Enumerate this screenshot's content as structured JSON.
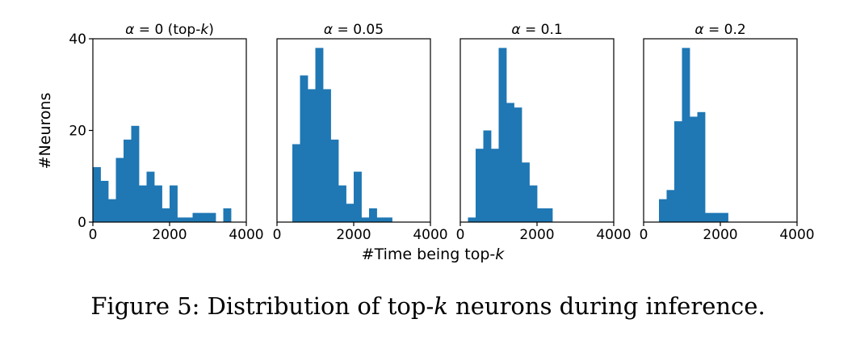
{
  "chart_data": {
    "type": "bar",
    "bar_color": "#1f77b4",
    "xlabel_prefix": "#Time being top-",
    "xlabel_k": "k",
    "ylabel": "#Neurons",
    "xlim": [
      0,
      4000
    ],
    "ylim": [
      0,
      40
    ],
    "xticks": [
      "0",
      "2000",
      "4000"
    ],
    "yticks": [
      "0",
      "20",
      "40"
    ],
    "grid": false,
    "panels": [
      {
        "title": "α = 0 (top-k)",
        "bins": [
          {
            "x0": 0,
            "x1": 200,
            "count": 12
          },
          {
            "x0": 200,
            "x1": 400,
            "count": 9
          },
          {
            "x0": 400,
            "x1": 600,
            "count": 5
          },
          {
            "x0": 600,
            "x1": 800,
            "count": 14
          },
          {
            "x0": 800,
            "x1": 1000,
            "count": 18
          },
          {
            "x0": 1000,
            "x1": 1200,
            "count": 21
          },
          {
            "x0": 1200,
            "x1": 1400,
            "count": 8
          },
          {
            "x0": 1400,
            "x1": 1600,
            "count": 11
          },
          {
            "x0": 1600,
            "x1": 1800,
            "count": 8
          },
          {
            "x0": 1800,
            "x1": 2000,
            "count": 3
          },
          {
            "x0": 2000,
            "x1": 2200,
            "count": 8
          },
          {
            "x0": 2200,
            "x1": 2400,
            "count": 1
          },
          {
            "x0": 2400,
            "x1": 2600,
            "count": 1
          },
          {
            "x0": 2600,
            "x1": 2800,
            "count": 2
          },
          {
            "x0": 2800,
            "x1": 3000,
            "count": 2
          },
          {
            "x0": 3000,
            "x1": 3200,
            "count": 2
          },
          {
            "x0": 3200,
            "x1": 3400,
            "count": 0
          },
          {
            "x0": 3400,
            "x1": 3600,
            "count": 3
          }
        ]
      },
      {
        "title": "α = 0.05",
        "bins": [
          {
            "x0": 400,
            "x1": 600,
            "count": 17
          },
          {
            "x0": 600,
            "x1": 800,
            "count": 32
          },
          {
            "x0": 800,
            "x1": 1000,
            "count": 29
          },
          {
            "x0": 1000,
            "x1": 1200,
            "count": 38
          },
          {
            "x0": 1200,
            "x1": 1400,
            "count": 29
          },
          {
            "x0": 1400,
            "x1": 1600,
            "count": 18
          },
          {
            "x0": 1600,
            "x1": 1800,
            "count": 8
          },
          {
            "x0": 1800,
            "x1": 2000,
            "count": 4
          },
          {
            "x0": 2000,
            "x1": 2200,
            "count": 11
          },
          {
            "x0": 2200,
            "x1": 2400,
            "count": 1
          },
          {
            "x0": 2400,
            "x1": 2600,
            "count": 3
          },
          {
            "x0": 2600,
            "x1": 2800,
            "count": 1
          },
          {
            "x0": 2800,
            "x1": 3000,
            "count": 1
          }
        ]
      },
      {
        "title": "α = 0.1",
        "bins": [
          {
            "x0": 200,
            "x1": 400,
            "count": 1
          },
          {
            "x0": 400,
            "x1": 600,
            "count": 16
          },
          {
            "x0": 600,
            "x1": 800,
            "count": 20
          },
          {
            "x0": 800,
            "x1": 1000,
            "count": 16
          },
          {
            "x0": 1000,
            "x1": 1200,
            "count": 38
          },
          {
            "x0": 1200,
            "x1": 1400,
            "count": 26
          },
          {
            "x0": 1400,
            "x1": 1600,
            "count": 25
          },
          {
            "x0": 1600,
            "x1": 1800,
            "count": 13
          },
          {
            "x0": 1800,
            "x1": 2000,
            "count": 8
          },
          {
            "x0": 2000,
            "x1": 2200,
            "count": 3
          },
          {
            "x0": 2200,
            "x1": 2400,
            "count": 3
          }
        ]
      },
      {
        "title": "α = 0.2",
        "bins": [
          {
            "x0": 400,
            "x1": 600,
            "count": 5
          },
          {
            "x0": 600,
            "x1": 800,
            "count": 7
          },
          {
            "x0": 800,
            "x1": 1000,
            "count": 22
          },
          {
            "x0": 1000,
            "x1": 1200,
            "count": 38
          },
          {
            "x0": 1200,
            "x1": 1400,
            "count": 23
          },
          {
            "x0": 1400,
            "x1": 1600,
            "count": 24
          },
          {
            "x0": 1600,
            "x1": 1800,
            "count": 2
          },
          {
            "x0": 1800,
            "x1": 2000,
            "count": 2
          },
          {
            "x0": 2000,
            "x1": 2200,
            "count": 2
          }
        ]
      }
    ]
  },
  "caption": {
    "prefix": "Figure 5: Distribution of top-",
    "k": "k",
    "suffix": " neurons during inference."
  }
}
